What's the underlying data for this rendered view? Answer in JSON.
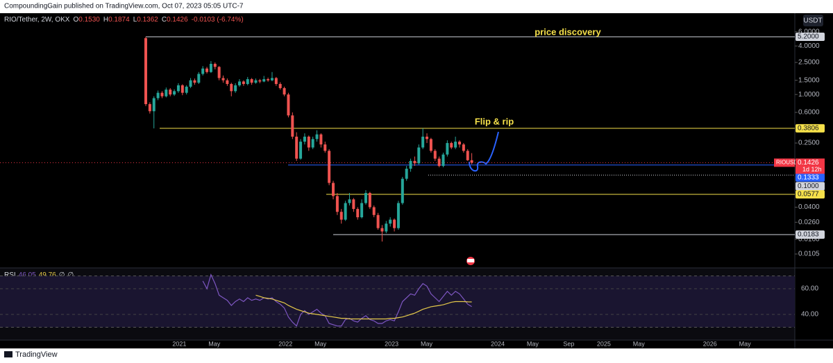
{
  "header": "CompoundingGain published on TradingView.com, Oct 07, 2023 05:05 UTC-7",
  "footer": "TradingView",
  "currency_button": "USDT",
  "chart_data": {
    "type": "candlestick",
    "symbol": "RIO/Tether, 2W, OKX",
    "info": [
      {
        "key": "O",
        "value": "0.1530"
      },
      {
        "key": "H",
        "value": "0.1874"
      },
      {
        "key": "L",
        "value": "0.1362"
      },
      {
        "key": "C",
        "value": "0.1426"
      }
    ],
    "change": "-0.0103 (-6.74%)",
    "log_scale": true,
    "up_color": "#26a69a",
    "down_color": "#ef5350",
    "ylim": [
      0.0072,
      7.0
    ],
    "yticks": [
      {
        "value": 6,
        "label": "6.0000"
      },
      {
        "value": 4,
        "label": "4.0000"
      },
      {
        "value": 2.5,
        "label": "2.5000"
      },
      {
        "value": 1.5,
        "label": "1.5000"
      },
      {
        "value": 1,
        "label": "1.0000"
      },
      {
        "value": 0.6,
        "label": "0.6000"
      },
      {
        "value": 0.25,
        "label": "0.2500"
      },
      {
        "value": 0.04,
        "label": "0.0400"
      },
      {
        "value": 0.026,
        "label": "0.0260"
      },
      {
        "value": 0.016,
        "label": "0.0160"
      },
      {
        "value": 0.0105,
        "label": "0.0105"
      }
    ],
    "xlim": [
      2019.31,
      2026.8
    ],
    "xticks": [
      2021,
      {
        "value": 2021.33,
        "label": "May"
      },
      2022,
      {
        "value": 2022.33,
        "label": "May"
      },
      2023,
      {
        "value": 2023.33,
        "label": "May"
      },
      2024,
      {
        "value": 2024.33,
        "label": "May"
      },
      {
        "value": 2024.67,
        "label": "Sep"
      },
      2025,
      {
        "value": 2025.33,
        "label": "May"
      },
      2026,
      {
        "value": 2026.33,
        "label": "May"
      }
    ],
    "ohlc": [
      [
        5.0,
        5.2,
        0.72,
        0.76
      ],
      [
        0.76,
        0.8,
        0.58,
        0.62
      ],
      [
        0.62,
        0.95,
        0.38,
        0.9
      ],
      [
        0.9,
        1.12,
        0.85,
        1.05
      ],
      [
        1.05,
        1.1,
        0.9,
        0.95
      ],
      [
        0.95,
        1.22,
        0.92,
        1.15
      ],
      [
        1.15,
        1.2,
        0.95,
        1.0
      ],
      [
        1.0,
        1.16,
        0.96,
        1.1
      ],
      [
        1.1,
        1.38,
        1.05,
        1.3
      ],
      [
        1.3,
        1.34,
        0.98,
        1.05
      ],
      [
        1.05,
        1.3,
        1.0,
        1.25
      ],
      [
        1.25,
        1.6,
        1.2,
        1.5
      ],
      [
        1.5,
        1.58,
        1.32,
        1.4
      ],
      [
        1.4,
        1.9,
        1.35,
        1.8
      ],
      [
        1.8,
        2.25,
        1.72,
        2.1
      ],
      [
        2.1,
        2.2,
        1.82,
        1.9
      ],
      [
        1.9,
        2.6,
        1.85,
        2.4
      ],
      [
        2.4,
        2.5,
        2.05,
        2.2
      ],
      [
        2.2,
        2.25,
        1.5,
        1.6
      ],
      [
        1.6,
        1.72,
        1.4,
        1.5
      ],
      [
        1.5,
        1.58,
        1.28,
        1.35
      ],
      [
        1.35,
        1.4,
        0.95,
        1.1
      ],
      [
        1.1,
        1.38,
        1.05,
        1.3
      ],
      [
        1.3,
        1.55,
        1.25,
        1.45
      ],
      [
        1.45,
        1.5,
        1.28,
        1.35
      ],
      [
        1.35,
        1.65,
        1.3,
        1.55
      ],
      [
        1.55,
        1.6,
        1.32,
        1.4
      ],
      [
        1.4,
        1.58,
        1.36,
        1.5
      ],
      [
        1.5,
        1.56,
        1.38,
        1.45
      ],
      [
        1.45,
        1.7,
        1.42,
        1.55
      ],
      [
        1.55,
        1.62,
        1.44,
        1.5
      ],
      [
        1.5,
        1.9,
        1.46,
        1.6
      ],
      [
        1.6,
        1.65,
        1.28,
        1.35
      ],
      [
        1.35,
        1.42,
        1.15,
        1.2
      ],
      [
        1.2,
        1.25,
        0.95,
        1.0
      ],
      [
        1.0,
        1.05,
        0.52,
        0.55
      ],
      [
        0.55,
        0.6,
        0.28,
        0.3
      ],
      [
        0.3,
        0.34,
        0.15,
        0.16
      ],
      [
        0.16,
        0.28,
        0.155,
        0.26
      ],
      [
        0.26,
        0.33,
        0.24,
        0.3
      ],
      [
        0.3,
        0.31,
        0.2,
        0.22
      ],
      [
        0.22,
        0.3,
        0.21,
        0.28
      ],
      [
        0.28,
        0.36,
        0.26,
        0.32
      ],
      [
        0.32,
        0.33,
        0.22,
        0.24
      ],
      [
        0.24,
        0.26,
        0.19,
        0.2
      ],
      [
        0.2,
        0.21,
        0.075,
        0.08
      ],
      [
        0.08,
        0.085,
        0.05,
        0.055
      ],
      [
        0.055,
        0.06,
        0.032,
        0.035
      ],
      [
        0.035,
        0.038,
        0.025,
        0.028
      ],
      [
        0.028,
        0.048,
        0.027,
        0.045
      ],
      [
        0.045,
        0.06,
        0.042,
        0.05
      ],
      [
        0.05,
        0.052,
        0.035,
        0.038
      ],
      [
        0.038,
        0.04,
        0.028,
        0.03
      ],
      [
        0.03,
        0.05,
        0.029,
        0.045
      ],
      [
        0.045,
        0.065,
        0.043,
        0.06
      ],
      [
        0.06,
        0.062,
        0.038,
        0.04
      ],
      [
        0.04,
        0.042,
        0.03,
        0.032
      ],
      [
        0.032,
        0.034,
        0.021,
        0.022
      ],
      [
        0.022,
        0.024,
        0.015,
        0.02
      ],
      [
        0.02,
        0.027,
        0.019,
        0.025
      ],
      [
        0.025,
        0.03,
        0.023,
        0.028
      ],
      [
        0.028,
        0.029,
        0.02,
        0.022
      ],
      [
        0.022,
        0.048,
        0.021,
        0.045
      ],
      [
        0.045,
        0.095,
        0.043,
        0.09
      ],
      [
        0.09,
        0.13,
        0.085,
        0.12
      ],
      [
        0.12,
        0.16,
        0.11,
        0.15
      ],
      [
        0.15,
        0.17,
        0.13,
        0.14
      ],
      [
        0.14,
        0.24,
        0.135,
        0.22
      ],
      [
        0.22,
        0.38,
        0.21,
        0.3
      ],
      [
        0.3,
        0.33,
        0.25,
        0.28
      ],
      [
        0.28,
        0.29,
        0.19,
        0.2
      ],
      [
        0.2,
        0.21,
        0.15,
        0.16
      ],
      [
        0.16,
        0.17,
        0.125,
        0.13
      ],
      [
        0.13,
        0.19,
        0.125,
        0.18
      ],
      [
        0.18,
        0.27,
        0.17,
        0.25
      ],
      [
        0.25,
        0.26,
        0.21,
        0.22
      ],
      [
        0.22,
        0.3,
        0.21,
        0.26
      ],
      [
        0.26,
        0.27,
        0.22,
        0.24
      ],
      [
        0.24,
        0.25,
        0.19,
        0.2
      ],
      [
        0.2,
        0.21,
        0.15,
        0.153
      ],
      [
        0.153,
        0.1874,
        0.1362,
        0.1426
      ]
    ],
    "hlines": [
      {
        "value": 5.2,
        "label": "5.2000",
        "color": "#d1d4dc"
      },
      {
        "value": 0.3806,
        "label": "0.3806",
        "color": "#f5e04a"
      },
      {
        "value": 0.1333,
        "label": "0.1333",
        "color": "#2962ff"
      },
      {
        "value": 0.1,
        "label": "0.1000",
        "color": "#d1d4dc"
      },
      {
        "value": 0.0577,
        "label": "0.0577",
        "color": "#f5e04a"
      },
      {
        "value": 0.0183,
        "label": "0.0183",
        "color": "#d1d4dc"
      }
    ],
    "last_price": {
      "name": "RIOUSDT",
      "value": 0.1426,
      "countdown": "1d 12h",
      "color": "#f23645"
    },
    "annotations": [
      "price discovery",
      "Flip & rip"
    ],
    "annotation_color": "#f5e04a",
    "rsi": {
      "legend": [
        "RSI",
        "46.05",
        "49.76",
        "∅",
        "∅"
      ],
      "ylim": [
        20,
        75.7
      ],
      "yticks": [
        {
          "value": 60,
          "label": "60.00"
        },
        {
          "value": 40,
          "label": "40.00"
        }
      ],
      "bands": [
        70,
        30
      ],
      "series": [
        {
          "color": "#7e57c2",
          "values": [
            null,
            null,
            null,
            null,
            null,
            null,
            null,
            null,
            null,
            null,
            null,
            null,
            null,
            null,
            66,
            60,
            71,
            64,
            55,
            53,
            51,
            47,
            50,
            52,
            50,
            53,
            51,
            52,
            51,
            53,
            52,
            53,
            50,
            48,
            45,
            38,
            34,
            31,
            40,
            43,
            40,
            42,
            44,
            41,
            39,
            33,
            32,
            31,
            31,
            36,
            37,
            35,
            34,
            37,
            39,
            36,
            35,
            33,
            33,
            35,
            36,
            35,
            42,
            50,
            53,
            56,
            55,
            60,
            64,
            62,
            56,
            53,
            50,
            54,
            58,
            55,
            58,
            56,
            52,
            48,
            46.05
          ]
        },
        {
          "color": "#e5c94a",
          "values": [
            null,
            null,
            null,
            null,
            null,
            null,
            null,
            null,
            null,
            null,
            null,
            null,
            null,
            null,
            null,
            null,
            null,
            null,
            null,
            null,
            null,
            null,
            null,
            null,
            null,
            null,
            null,
            55,
            54,
            53,
            52.5,
            52,
            51,
            50,
            49,
            47,
            45.5,
            44,
            43,
            42,
            41,
            40.5,
            40,
            39.5,
            39,
            38.5,
            38,
            37.5,
            37,
            37,
            36.5,
            36.5,
            36.5,
            36.5,
            36.5,
            36.5,
            36.5,
            36.5,
            36.5,
            36.5,
            37,
            37,
            37.5,
            38,
            39,
            40,
            41,
            42.5,
            44,
            45,
            46,
            46.5,
            47,
            47.5,
            48.5,
            49.5,
            50,
            50,
            50,
            49.8,
            49.76
          ]
        }
      ]
    }
  }
}
